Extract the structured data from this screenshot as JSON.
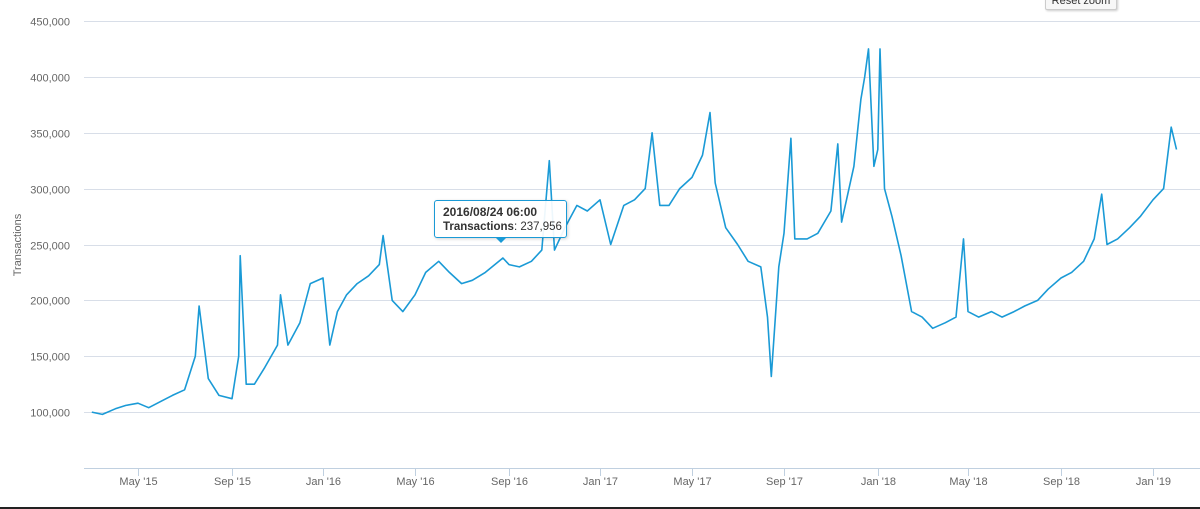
{
  "chart_data": {
    "type": "line",
    "title": "",
    "xlabel": "",
    "ylabel": "Transactions",
    "ylim": [
      50000,
      450000
    ],
    "grid": true,
    "line_color": "#1a9ad6",
    "y_ticks": [
      {
        "value": 100000,
        "label": "100,000"
      },
      {
        "value": 150000,
        "label": "150,000"
      },
      {
        "value": 200000,
        "label": "200,000"
      },
      {
        "value": 250000,
        "label": "250,000"
      },
      {
        "value": 300000,
        "label": "300,000"
      },
      {
        "value": 350000,
        "label": "350,000"
      },
      {
        "value": 400000,
        "label": "400,000"
      },
      {
        "value": 450000,
        "label": "450,000"
      }
    ],
    "x_ticks": [
      {
        "date": "2015-05-01",
        "label": "May '15"
      },
      {
        "date": "2015-09-01",
        "label": "Sep '15"
      },
      {
        "date": "2016-01-01",
        "label": "Jan '16"
      },
      {
        "date": "2016-05-01",
        "label": "May '16"
      },
      {
        "date": "2016-09-01",
        "label": "Sep '16"
      },
      {
        "date": "2017-01-01",
        "label": "Jan '17"
      },
      {
        "date": "2017-05-01",
        "label": "May '17"
      },
      {
        "date": "2017-09-01",
        "label": "Sep '17"
      },
      {
        "date": "2018-01-01",
        "label": "Jan '18"
      },
      {
        "date": "2018-05-01",
        "label": "May '18"
      },
      {
        "date": "2018-09-01",
        "label": "Sep '18"
      },
      {
        "date": "2019-01-01",
        "label": "Jan '19"
      }
    ],
    "series": [
      {
        "name": "Transactions",
        "points": [
          [
            "2015-03-01",
            100000
          ],
          [
            "2015-03-15",
            98000
          ],
          [
            "2015-04-01",
            103000
          ],
          [
            "2015-04-15",
            106000
          ],
          [
            "2015-05-01",
            108000
          ],
          [
            "2015-05-15",
            104000
          ],
          [
            "2015-06-01",
            110000
          ],
          [
            "2015-06-15",
            115000
          ],
          [
            "2015-07-01",
            120000
          ],
          [
            "2015-07-15",
            150000
          ],
          [
            "2015-07-20",
            195000
          ],
          [
            "2015-08-01",
            130000
          ],
          [
            "2015-08-15",
            115000
          ],
          [
            "2015-09-01",
            112000
          ],
          [
            "2015-09-10",
            150000
          ],
          [
            "2015-09-12",
            240000
          ],
          [
            "2015-09-20",
            125000
          ],
          [
            "2015-10-01",
            125000
          ],
          [
            "2015-10-15",
            140000
          ],
          [
            "2015-11-01",
            160000
          ],
          [
            "2015-11-05",
            205000
          ],
          [
            "2015-11-15",
            160000
          ],
          [
            "2015-12-01",
            180000
          ],
          [
            "2015-12-15",
            215000
          ],
          [
            "2016-01-01",
            220000
          ],
          [
            "2016-01-10",
            160000
          ],
          [
            "2016-01-20",
            190000
          ],
          [
            "2016-02-01",
            205000
          ],
          [
            "2016-02-15",
            215000
          ],
          [
            "2016-03-01",
            222000
          ],
          [
            "2016-03-15",
            232000
          ],
          [
            "2016-03-20",
            258000
          ],
          [
            "2016-04-01",
            200000
          ],
          [
            "2016-04-15",
            190000
          ],
          [
            "2016-05-01",
            205000
          ],
          [
            "2016-05-15",
            225000
          ],
          [
            "2016-06-01",
            235000
          ],
          [
            "2016-06-15",
            225000
          ],
          [
            "2016-07-01",
            215000
          ],
          [
            "2016-07-15",
            218000
          ],
          [
            "2016-08-01",
            225000
          ],
          [
            "2016-08-24",
            237956
          ],
          [
            "2016-09-01",
            232000
          ],
          [
            "2016-09-15",
            230000
          ],
          [
            "2016-10-01",
            235000
          ],
          [
            "2016-10-15",
            245000
          ],
          [
            "2016-10-25",
            325000
          ],
          [
            "2016-11-01",
            245000
          ],
          [
            "2016-11-15",
            265000
          ],
          [
            "2016-12-01",
            285000
          ],
          [
            "2016-12-15",
            280000
          ],
          [
            "2017-01-01",
            290000
          ],
          [
            "2017-01-15",
            250000
          ],
          [
            "2017-02-01",
            285000
          ],
          [
            "2017-02-15",
            290000
          ],
          [
            "2017-03-01",
            300000
          ],
          [
            "2017-03-10",
            350000
          ],
          [
            "2017-03-20",
            285000
          ],
          [
            "2017-04-01",
            285000
          ],
          [
            "2017-04-15",
            300000
          ],
          [
            "2017-05-01",
            310000
          ],
          [
            "2017-05-15",
            330000
          ],
          [
            "2017-05-25",
            368000
          ],
          [
            "2017-06-01",
            305000
          ],
          [
            "2017-06-15",
            265000
          ],
          [
            "2017-07-01",
            250000
          ],
          [
            "2017-07-15",
            235000
          ],
          [
            "2017-08-01",
            230000
          ],
          [
            "2017-08-10",
            185000
          ],
          [
            "2017-08-15",
            132000
          ],
          [
            "2017-08-25",
            230000
          ],
          [
            "2017-09-01",
            260000
          ],
          [
            "2017-09-10",
            345000
          ],
          [
            "2017-09-15",
            255000
          ],
          [
            "2017-10-01",
            255000
          ],
          [
            "2017-10-15",
            260000
          ],
          [
            "2017-11-01",
            280000
          ],
          [
            "2017-11-10",
            340000
          ],
          [
            "2017-11-15",
            270000
          ],
          [
            "2017-12-01",
            320000
          ],
          [
            "2017-12-10",
            380000
          ],
          [
            "2017-12-15",
            400000
          ],
          [
            "2017-12-20",
            425000
          ],
          [
            "2017-12-27",
            320000
          ],
          [
            "2018-01-01",
            335000
          ],
          [
            "2018-01-04",
            425000
          ],
          [
            "2018-01-10",
            300000
          ],
          [
            "2018-01-20",
            275000
          ],
          [
            "2018-02-01",
            240000
          ],
          [
            "2018-02-15",
            190000
          ],
          [
            "2018-03-01",
            185000
          ],
          [
            "2018-03-15",
            175000
          ],
          [
            "2018-04-01",
            180000
          ],
          [
            "2018-04-15",
            185000
          ],
          [
            "2018-04-25",
            255000
          ],
          [
            "2018-05-01",
            190000
          ],
          [
            "2018-05-15",
            185000
          ],
          [
            "2018-06-01",
            190000
          ],
          [
            "2018-06-15",
            185000
          ],
          [
            "2018-07-01",
            190000
          ],
          [
            "2018-07-15",
            195000
          ],
          [
            "2018-08-01",
            200000
          ],
          [
            "2018-08-15",
            210000
          ],
          [
            "2018-09-01",
            220000
          ],
          [
            "2018-09-15",
            225000
          ],
          [
            "2018-10-01",
            235000
          ],
          [
            "2018-10-15",
            255000
          ],
          [
            "2018-10-25",
            295000
          ],
          [
            "2018-11-01",
            250000
          ],
          [
            "2018-11-15",
            255000
          ],
          [
            "2018-12-01",
            265000
          ],
          [
            "2018-12-15",
            275000
          ],
          [
            "2019-01-01",
            290000
          ],
          [
            "2019-01-15",
            300000
          ],
          [
            "2019-01-25",
            355000
          ],
          [
            "2019-02-01",
            335000
          ]
        ]
      }
    ],
    "tooltip": {
      "date": "2016/08/24 06:00",
      "label": "Transactions",
      "value": "237,956"
    }
  },
  "controls": {
    "reset_zoom_label": "Reset zoom"
  }
}
